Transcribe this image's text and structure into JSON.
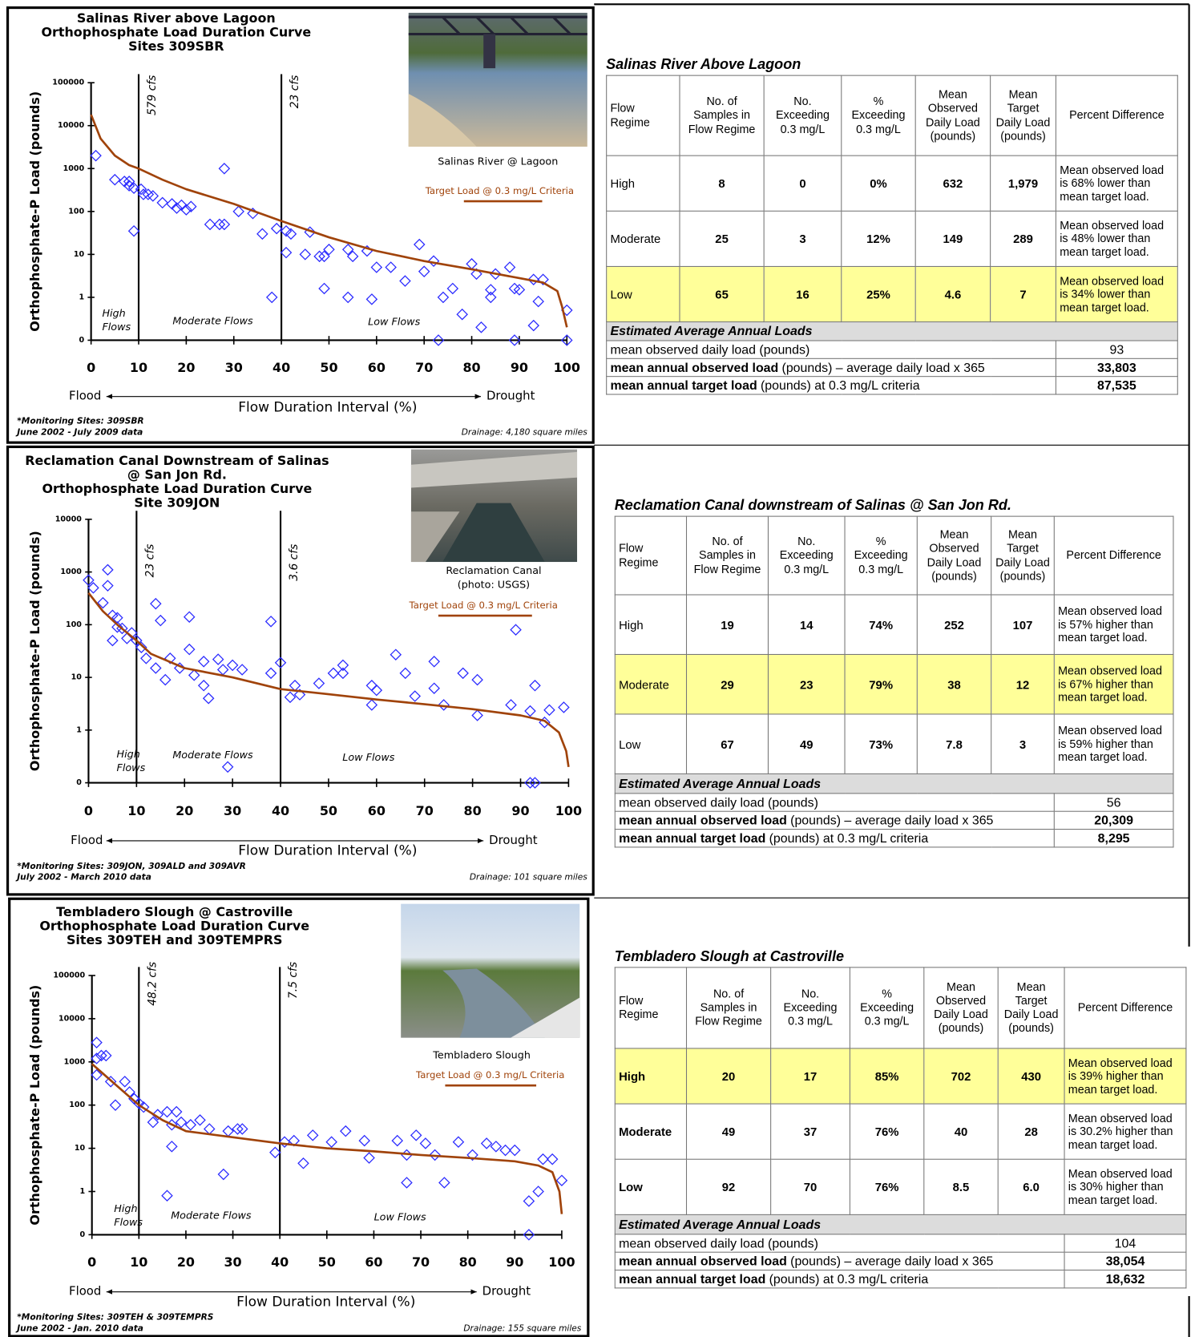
{
  "chart_data": [
    {
      "type": "scatter",
      "title": [
        "Salinas River above Lagoon",
        "Orthophosphate Load Duration Curve",
        "Sites 309SBR"
      ],
      "photo_caption": [
        "Salinas River @ Lagoon"
      ],
      "xlim": [
        0,
        100
      ],
      "xticks": [
        0,
        10,
        20,
        30,
        40,
        50,
        60,
        70,
        80,
        90,
        100
      ],
      "ylim": [
        0.1,
        100000
      ],
      "yticks": [
        {
          "value": 0.1,
          "label": "0"
        },
        1,
        10,
        100,
        1000,
        10000,
        100000
      ],
      "log_y": true,
      "ylabel": "Orthophosphate-P Load (pounds)",
      "xlabel": "Flow Duration Interval (%)",
      "flood_label": "Flood",
      "drought_label": "Drought",
      "vlines": [
        {
          "x": 10,
          "label": "579 cfs"
        },
        {
          "x": 40,
          "label": "23 cfs"
        }
      ],
      "regions": [
        {
          "label": [
            "High",
            "Flows"
          ]
        },
        {
          "label": [
            "Moderate Flows"
          ]
        },
        {
          "label": [
            "Low Flows"
          ]
        }
      ],
      "series": [
        {
          "type": "scatter",
          "color": "#2b2bff",
          "x": [
            1,
            5,
            7,
            8,
            8,
            9,
            9,
            10.5,
            11,
            12,
            13,
            15,
            17,
            18,
            19,
            20,
            21,
            25,
            27,
            28,
            28,
            31,
            34,
            36,
            38,
            39,
            41,
            41,
            42,
            46,
            45,
            48,
            49,
            49,
            50,
            54,
            54,
            55,
            58,
            59,
            60,
            63,
            66,
            69,
            70,
            72,
            74,
            76,
            78,
            80,
            81,
            82,
            84,
            84,
            85,
            88,
            89,
            90,
            93,
            93,
            95,
            94,
            100,
            100,
            73,
            89
          ],
          "values": [
            2000,
            550,
            500,
            400,
            500,
            350,
            35,
            330,
            250,
            250,
            230,
            160,
            150,
            120,
            140,
            110,
            130,
            50,
            50,
            1000,
            50,
            100,
            90,
            30,
            1,
            40,
            35,
            11,
            30,
            33,
            10,
            9,
            9,
            1.6,
            13,
            1,
            13,
            9,
            12,
            0.9,
            5,
            5,
            2.4,
            17,
            4,
            7,
            1,
            1.6,
            0.4,
            6,
            3.5,
            0.2,
            1,
            1.5,
            3.5,
            5,
            1.6,
            1.5,
            2.6,
            0.22,
            2.6,
            0.8,
            0.5,
            0.1,
            0.1,
            0.1
          ]
        },
        {
          "type": "line",
          "name": "Target Load @ 0.3 mg/L Criteria",
          "color": "#a0430a",
          "x": [
            0,
            2,
            5,
            8,
            10,
            15,
            20,
            30,
            40,
            50,
            60,
            70,
            80,
            90,
            95,
            98,
            99,
            100
          ],
          "values": [
            18000,
            5000,
            2000,
            1200,
            1000,
            550,
            330,
            150,
            60,
            25,
            12,
            7,
            4.5,
            2.8,
            2.2,
            1.4,
            0.6,
            0.2
          ]
        }
      ],
      "footnote": [
        "*Monitoring Sites: 309SBR",
        "June 2002 - July 2009 data"
      ],
      "drainage": "Drainage: 4,180 square miles"
    },
    {
      "type": "scatter",
      "title": [
        "Reclamation Canal Downstream of Salinas",
        "@ San Jon Rd.",
        "Orthophosphate Load Duration Curve",
        "Site 309JON"
      ],
      "photo_caption": [
        "Reclamation Canal",
        "(photo: USGS)"
      ],
      "xlim": [
        0,
        100
      ],
      "xticks": [
        0,
        10,
        20,
        30,
        40,
        50,
        60,
        70,
        80,
        90,
        100
      ],
      "ylim": [
        0.1,
        10000
      ],
      "yticks": [
        {
          "value": 0.1,
          "label": "0"
        },
        1,
        10,
        100,
        1000,
        10000
      ],
      "log_y": true,
      "ylabel": "Orthophosphate-P Load (pounds)",
      "xlabel": "Flow Duration Interval (%)",
      "flood_label": "Flood",
      "drought_label": "Drought",
      "vlines": [
        {
          "x": 10,
          "label": "23 cfs"
        },
        {
          "x": 40,
          "label": "3.6 cfs"
        }
      ],
      "regions": [
        {
          "label": [
            "High",
            "Flows"
          ]
        },
        {
          "label": [
            "Moderate Flows"
          ]
        },
        {
          "label": [
            "Low Flows"
          ]
        }
      ],
      "series": [
        {
          "type": "scatter",
          "color": "#2b2bff",
          "x": [
            0,
            1,
            4,
            4,
            3,
            5,
            6,
            6,
            5,
            7,
            8,
            9,
            10,
            11,
            12,
            14,
            15,
            14,
            16,
            17,
            19,
            21,
            21,
            22,
            24,
            24,
            25,
            27,
            28,
            30,
            29,
            32,
            38,
            38,
            40,
            42,
            43,
            44,
            48,
            51,
            53,
            53,
            59,
            60,
            59,
            64,
            66,
            68,
            72,
            72,
            74,
            78,
            81,
            81,
            88,
            89,
            92,
            93,
            95,
            96,
            99,
            92,
            93
          ],
          "values": [
            700,
            500,
            1100,
            550,
            260,
            150,
            90,
            135,
            50,
            85,
            55,
            70,
            50,
            37,
            23,
            250,
            120,
            15,
            9,
            23,
            15,
            140,
            34,
            11,
            20,
            7,
            4,
            22,
            14,
            17,
            0.2,
            14,
            115,
            12,
            19,
            4.2,
            7,
            4.7,
            7.7,
            12,
            17,
            12,
            7,
            5.7,
            3,
            27,
            12,
            4.4,
            20,
            6.2,
            3,
            12,
            9,
            1.9,
            3,
            80,
            2.3,
            7,
            1.4,
            2.4,
            2.7,
            0.1,
            0.1
          ]
        },
        {
          "type": "line",
          "name": "Target Load @ 0.3 mg/L Criteria",
          "color": "#a0430a",
          "x": [
            0,
            3,
            6,
            10,
            13,
            20,
            30,
            40,
            50,
            60,
            70,
            80,
            90,
            95,
            98,
            99.5,
            100
          ],
          "values": [
            400,
            180,
            100,
            50,
            28,
            15,
            10,
            6,
            4.8,
            3.8,
            3.1,
            2.5,
            1.9,
            1.5,
            0.9,
            0.4,
            0.2
          ]
        }
      ],
      "footnote": [
        "*Monitoring Sites: 309JON, 309ALD and 309AVR",
        "July 2002 - March 2010 data"
      ],
      "drainage": "Drainage: 101 square miles"
    },
    {
      "type": "scatter",
      "title": [
        "Tembladero Slough @ Castroville",
        "Orthophosphate Load Duration Curve",
        "Sites 309TEH and 309TEMPRS"
      ],
      "photo_caption": [
        "Tembladero Slough"
      ],
      "xlim": [
        0,
        100
      ],
      "xticks": [
        0,
        10,
        20,
        30,
        40,
        50,
        60,
        70,
        80,
        90,
        100
      ],
      "ylim": [
        0.1,
        100000
      ],
      "yticks": [
        {
          "value": 0.1,
          "label": "0"
        },
        1,
        10,
        100,
        1000,
        10000,
        100000
      ],
      "log_y": true,
      "ylabel": "Orthophosphate-P Load (pounds)",
      "xlabel": "Flow Duration Interval (%)",
      "flood_label": "Flood",
      "drought_label": "Drought",
      "vlines": [
        {
          "x": 10,
          "label": "48.2 cfs"
        },
        {
          "x": 40,
          "label": "7.5 cfs"
        }
      ],
      "regions": [
        {
          "label": [
            "High",
            "Flows"
          ]
        },
        {
          "label": [
            "Moderate Flows"
          ]
        },
        {
          "label": [
            "Low Flows"
          ]
        }
      ],
      "series": [
        {
          "type": "scatter",
          "color": "#2b2bff",
          "x": [
            1,
            1,
            2,
            3,
            1,
            4,
            5,
            7,
            8,
            9,
            9,
            10,
            11,
            13,
            14,
            16,
            17,
            17,
            18,
            16,
            19,
            21,
            23,
            25,
            28,
            29,
            31,
            32,
            39,
            41,
            43,
            45,
            47,
            51,
            54,
            58,
            59,
            65,
            67,
            67,
            69,
            71,
            73,
            75,
            78,
            81,
            84,
            86,
            88,
            90,
            93,
            93,
            95,
            96,
            98,
            100
          ],
          "values": [
            2800,
            1200,
            1400,
            1400,
            500,
            350,
            100,
            350,
            200,
            140,
            140,
            110,
            90,
            40,
            60,
            70,
            35,
            11,
            70,
            0.8,
            40,
            35,
            45,
            28,
            2.5,
            25,
            28,
            28,
            8,
            14,
            15,
            4.5,
            20,
            14,
            25,
            15,
            6,
            15,
            7,
            1.6,
            20,
            13,
            7,
            1.6,
            14,
            7,
            13,
            11,
            9,
            9,
            0.6,
            0.1,
            1,
            5.6,
            5.6,
            1.8
          ]
        },
        {
          "type": "line",
          "name": "Target Load @ 0.3 mg/L Criteria",
          "color": "#a0430a",
          "x": [
            0,
            5,
            10,
            15,
            20,
            30,
            40,
            50,
            60,
            70,
            80,
            90,
            95,
            98,
            99.5,
            100
          ],
          "values": [
            900,
            300,
            100,
            45,
            25,
            18,
            13,
            10,
            8.5,
            7,
            6,
            5,
            4,
            2.8,
            1,
            0.3
          ]
        }
      ],
      "footnote": [
        "*Monitoring Sites: 309TEH & 309TEMPRS",
        "June 2002 - Jan. 2010 data"
      ],
      "drainage": "Drainage: 155 square miles"
    }
  ],
  "tables": [
    {
      "title": "Salinas River Above Lagoon",
      "header": [
        "Flow Regime",
        "No. of Samples in Flow Regime",
        "No. Exceeding 0.3 mg/L",
        "% Exceeding 0.3 mg/L",
        "Mean Observed Daily Load (pounds)",
        "Mean Target Daily Load (pounds)",
        "Percent Difference"
      ],
      "rows": [
        [
          "High",
          "8",
          "0",
          "0%",
          "632",
          "1,979",
          "Mean observed load is 68% lower than mean target load."
        ],
        [
          "Moderate",
          "25",
          "3",
          "12%",
          "149",
          "289",
          "Mean observed load is 48% lower than mean target load."
        ],
        [
          "Low",
          "65",
          "16",
          "25%",
          "4.6",
          "7",
          "Mean observed load is 34% lower than mean target load."
        ]
      ],
      "highlight": [
        false,
        false,
        true
      ],
      "bold_regime": false,
      "summary_title": "Estimated Average Annual Loads",
      "summary": [
        {
          "label": "mean observed daily load (pounds)",
          "value": "93"
        },
        {
          "label_bold": "mean annual observed load",
          "label": "(pounds) – average daily load x 365",
          "value": "33,803"
        },
        {
          "label_bold": "mean annual target load",
          "label": "(pounds) at 0.3 mg/L criteria",
          "value": "87,535"
        }
      ]
    },
    {
      "title": "Reclamation Canal downstream of Salinas @ San Jon Rd.",
      "header": [
        "Flow Regime",
        "No. of Samples in Flow Regime",
        "No. Exceeding 0.3 mg/L",
        "% Exceeding 0.3 mg/L",
        "Mean Observed Daily Load (pounds)",
        "Mean Target Daily Load (pounds)",
        "Percent Difference"
      ],
      "rows": [
        [
          "High",
          "19",
          "14",
          "74%",
          "252",
          "107",
          "Mean observed load is 57% higher than mean target load."
        ],
        [
          "Moderate",
          "29",
          "23",
          "79%",
          "38",
          "12",
          "Mean observed load is 67% higher than mean target load."
        ],
        [
          "Low",
          "67",
          "49",
          "73%",
          "7.8",
          "3",
          "Mean observed load is 59% higher than mean target load."
        ]
      ],
      "highlight": [
        false,
        true,
        false
      ],
      "bold_regime": false,
      "summary_title": "Estimated Average Annual Loads",
      "summary": [
        {
          "label": "mean observed daily load (pounds)",
          "value": "56"
        },
        {
          "label_bold": "mean annual observed load",
          "label": "(pounds) – average daily load x 365",
          "value": "20,309"
        },
        {
          "label_bold": "mean annual target load",
          "label": "(pounds) at 0.3 mg/L criteria",
          "value": "8,295"
        }
      ]
    },
    {
      "title": "Tembladero Slough at Castroville",
      "header": [
        "Flow Regime",
        "No. of Samples in Flow Regime",
        "No. Exceeding 0.3 mg/L",
        "% Exceeding 0.3 mg/L",
        "Mean Observed Daily Load (pounds)",
        "Mean Target Daily Load (pounds)",
        "Percent Difference"
      ],
      "rows": [
        [
          "High",
          "20",
          "17",
          "85%",
          "702",
          "430",
          "Mean observed load is 39% higher than mean target load."
        ],
        [
          "Moderate",
          "49",
          "37",
          "76%",
          "40",
          "28",
          "Mean observed load is 30.2% higher than mean target load."
        ],
        [
          "Low",
          "92",
          "70",
          "76%",
          "8.5",
          "6.0",
          "Mean observed load is 30% higher than mean target load."
        ]
      ],
      "highlight": [
        true,
        false,
        false
      ],
      "bold_regime": true,
      "summary_title": "Estimated Average Annual Loads",
      "summary": [
        {
          "label": "mean observed daily load (pounds)",
          "value": "104"
        },
        {
          "label_bold": "mean annual observed load",
          "label": "(pounds) – average daily load x 365",
          "value": "38,054"
        },
        {
          "label_bold": "mean annual target load",
          "label": "(pounds) at 0.3 mg/L criteria",
          "value": "18,632"
        }
      ]
    }
  ]
}
